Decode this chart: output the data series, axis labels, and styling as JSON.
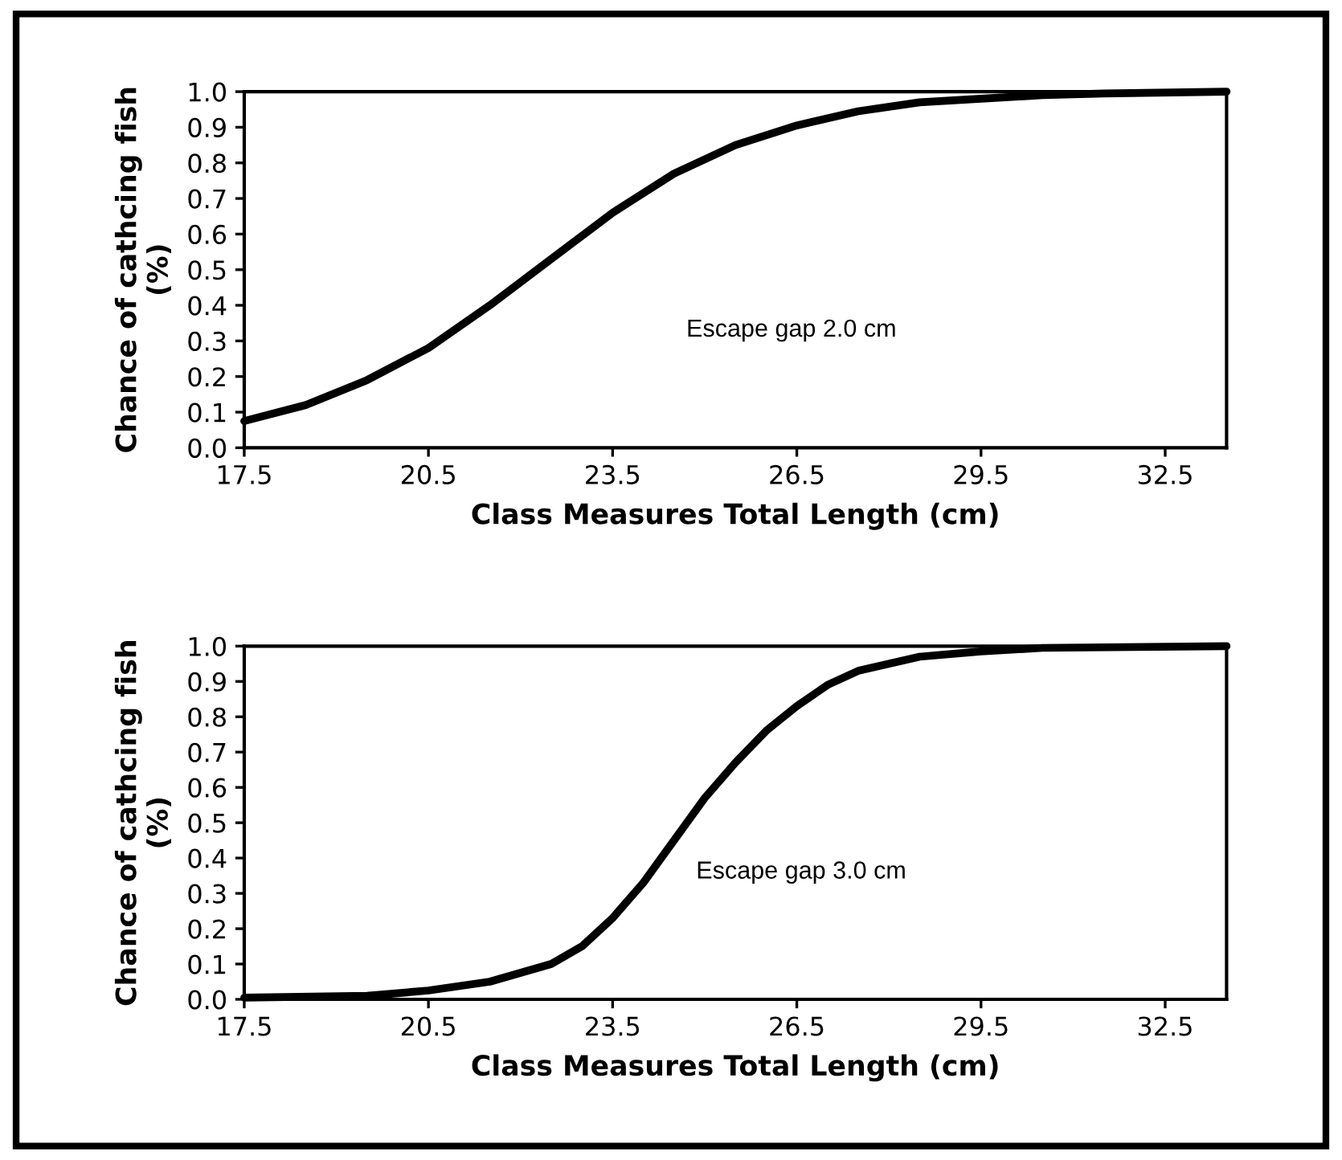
{
  "chart_data": [
    {
      "type": "line",
      "xlabel": "Class Measures Total Length (cm)",
      "ylabel": "Chance of cathcing fish\n(%)",
      "annotations": [
        "Escape gap 2.0 cm"
      ],
      "xlim": [
        17.5,
        33.5
      ],
      "ylim": [
        0.0,
        1.0
      ],
      "xticks": [
        {
          "value": 17.5,
          "label": "17.5"
        },
        {
          "value": 20.5,
          "label": "20.5"
        },
        {
          "value": 23.5,
          "label": "23.5"
        },
        {
          "value": 26.5,
          "label": "26.5"
        },
        {
          "value": 29.5,
          "label": "29.5"
        },
        {
          "value": 32.5,
          "label": "32.5"
        }
      ],
      "yticks": [
        {
          "value": 0,
          "label": "0.0"
        },
        {
          "value": 0.1,
          "label": "0.1"
        },
        {
          "value": 0.2,
          "label": "0.2"
        },
        {
          "value": 0.3,
          "label": "0.3"
        },
        {
          "value": 0.4,
          "label": "0.4"
        },
        {
          "value": 0.5,
          "label": "0.5"
        },
        {
          "value": 0.6,
          "label": "0.6"
        },
        {
          "value": 0.7,
          "label": "0.7"
        },
        {
          "value": 0.8,
          "label": "0.8"
        },
        {
          "value": 0.9,
          "label": "0.9"
        },
        {
          "value": 1,
          "label": "1.0"
        }
      ],
      "grid": false,
      "marker": "none",
      "line_style": "solid",
      "series": [
        {
          "color": "#000000",
          "x": [
            17.5,
            18.5,
            19.5,
            20.5,
            21.5,
            22.5,
            23.5,
            24.5,
            25.5,
            26.5,
            27.5,
            28.5,
            29.5,
            30.5,
            31.5,
            33.5
          ],
          "values": [
            0.075,
            0.12,
            0.19,
            0.28,
            0.4,
            0.53,
            0.66,
            0.77,
            0.85,
            0.905,
            0.945,
            0.97,
            0.98,
            0.99,
            0.995,
            1.0
          ]
        }
      ]
    },
    {
      "type": "line",
      "xlabel": "Class Measures Total Length (cm)",
      "ylabel": "Chance of cathcing fish\n(%)",
      "annotations": [
        "Escape gap 3.0 cm"
      ],
      "xlim": [
        17.5,
        33.5
      ],
      "ylim": [
        0.0,
        1.0
      ],
      "xticks": [
        {
          "value": 17.5,
          "label": "17.5"
        },
        {
          "value": 20.5,
          "label": "20.5"
        },
        {
          "value": 23.5,
          "label": "23.5"
        },
        {
          "value": 26.5,
          "label": "26.5"
        },
        {
          "value": 29.5,
          "label": "29.5"
        },
        {
          "value": 32.5,
          "label": "32.5"
        }
      ],
      "yticks": [
        {
          "value": 0,
          "label": "0.0"
        },
        {
          "value": 0.1,
          "label": "0.1"
        },
        {
          "value": 0.2,
          "label": "0.2"
        },
        {
          "value": 0.3,
          "label": "0.3"
        },
        {
          "value": 0.4,
          "label": "0.4"
        },
        {
          "value": 0.5,
          "label": "0.5"
        },
        {
          "value": 0.6,
          "label": "0.6"
        },
        {
          "value": 0.7,
          "label": "0.7"
        },
        {
          "value": 0.8,
          "label": "0.8"
        },
        {
          "value": 0.9,
          "label": "0.9"
        },
        {
          "value": 1,
          "label": "1.0"
        }
      ],
      "grid": false,
      "marker": "none",
      "line_style": "solid",
      "series": [
        {
          "color": "#000000",
          "x": [
            17.5,
            19.5,
            20.5,
            21.5,
            22.5,
            23.0,
            23.5,
            24.0,
            24.5,
            25.0,
            25.5,
            26.0,
            26.5,
            27.0,
            27.5,
            28.5,
            29.5,
            30.5,
            33.5
          ],
          "values": [
            0.005,
            0.01,
            0.025,
            0.05,
            0.1,
            0.15,
            0.23,
            0.33,
            0.45,
            0.57,
            0.67,
            0.76,
            0.83,
            0.89,
            0.93,
            0.97,
            0.985,
            0.995,
            1.0
          ]
        }
      ]
    }
  ]
}
